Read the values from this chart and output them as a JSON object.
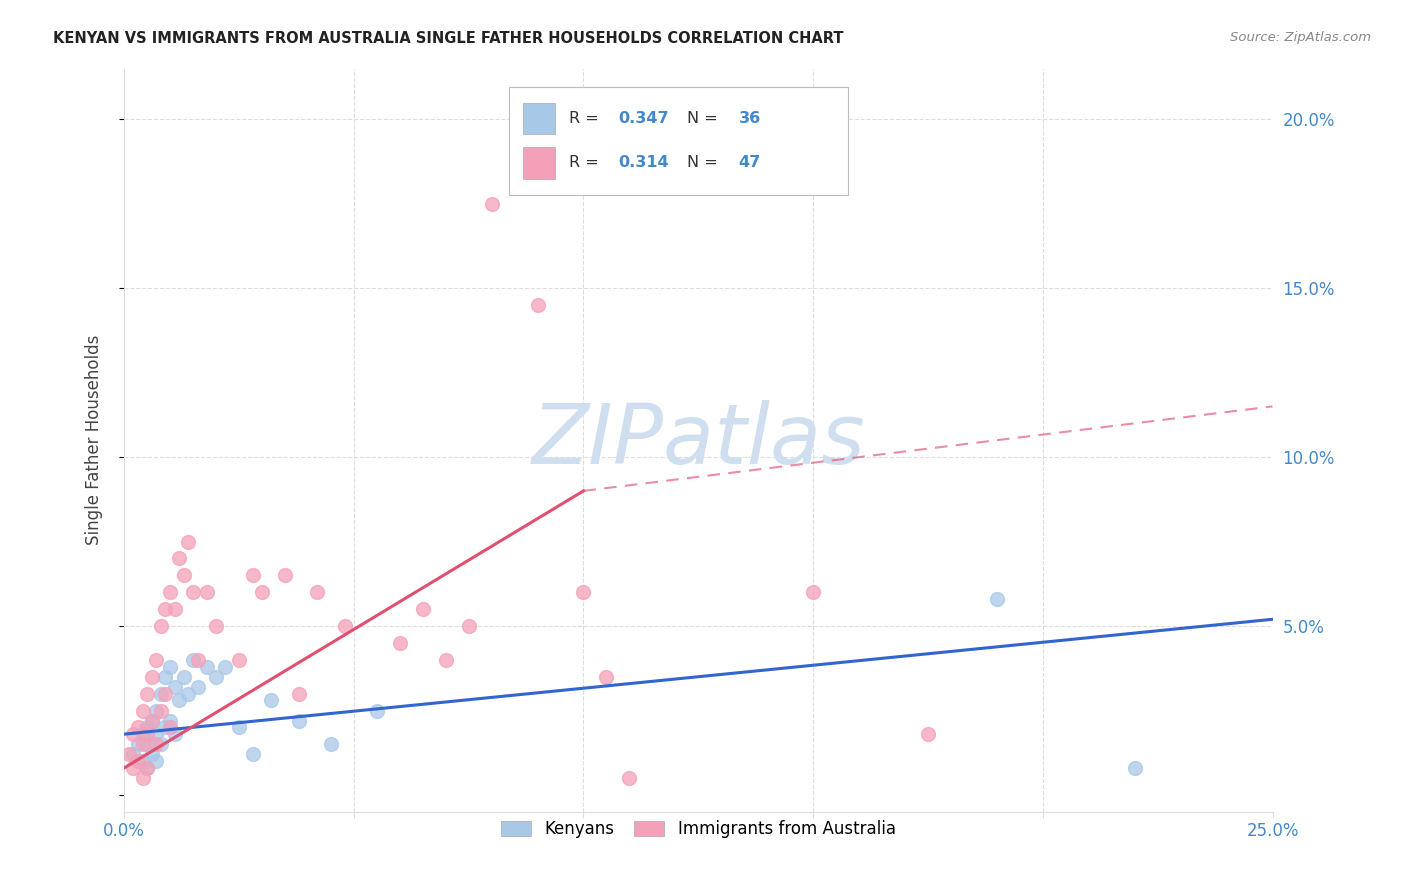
{
  "title": "KENYAN VS IMMIGRANTS FROM AUSTRALIA SINGLE FATHER HOUSEHOLDS CORRELATION CHART",
  "source": "Source: ZipAtlas.com",
  "ylabel": "Single Father Households",
  "xlim": [
    0.0,
    0.25
  ],
  "ylim": [
    -0.005,
    0.215
  ],
  "xtick_positions": [
    0.0,
    0.05,
    0.1,
    0.15,
    0.2,
    0.25
  ],
  "xtick_labels": [
    "0.0%",
    "",
    "",
    "",
    "",
    "25.0%"
  ],
  "ytick_positions": [
    0.0,
    0.05,
    0.1,
    0.15,
    0.2
  ],
  "ytick_labels": [
    "",
    "5.0%",
    "10.0%",
    "15.0%",
    "20.0%"
  ],
  "legend_r_blue": "0.347",
  "legend_n_blue": "36",
  "legend_r_pink": "0.314",
  "legend_n_pink": "47",
  "blue_scatter_color": "#a8c8e8",
  "pink_scatter_color": "#f4a0b8",
  "blue_line_color": "#3366cc",
  "pink_line_color": "#e05070",
  "watermark_color": "#d0dff0",
  "grid_color": "#dddddd",
  "title_color": "#222222",
  "axis_label_color": "#444444",
  "tick_label_color": "#4488cc",
  "source_color": "#888888",
  "blue_scatter_x": [
    0.002,
    0.003,
    0.004,
    0.004,
    0.005,
    0.005,
    0.005,
    0.006,
    0.006,
    0.007,
    0.007,
    0.007,
    0.008,
    0.008,
    0.009,
    0.009,
    0.01,
    0.01,
    0.011,
    0.011,
    0.012,
    0.013,
    0.014,
    0.015,
    0.016,
    0.018,
    0.02,
    0.022,
    0.025,
    0.028,
    0.032,
    0.038,
    0.045,
    0.055,
    0.19,
    0.22
  ],
  "blue_scatter_y": [
    0.012,
    0.015,
    0.018,
    0.01,
    0.02,
    0.015,
    0.008,
    0.022,
    0.012,
    0.025,
    0.018,
    0.01,
    0.03,
    0.015,
    0.035,
    0.02,
    0.038,
    0.022,
    0.032,
    0.018,
    0.028,
    0.035,
    0.03,
    0.04,
    0.032,
    0.038,
    0.035,
    0.038,
    0.02,
    0.012,
    0.028,
    0.022,
    0.015,
    0.025,
    0.058,
    0.008
  ],
  "pink_scatter_x": [
    0.001,
    0.002,
    0.002,
    0.003,
    0.003,
    0.004,
    0.004,
    0.004,
    0.005,
    0.005,
    0.005,
    0.006,
    0.006,
    0.007,
    0.007,
    0.008,
    0.008,
    0.009,
    0.009,
    0.01,
    0.01,
    0.011,
    0.012,
    0.013,
    0.014,
    0.015,
    0.016,
    0.018,
    0.02,
    0.025,
    0.028,
    0.03,
    0.035,
    0.038,
    0.042,
    0.048,
    0.06,
    0.065,
    0.07,
    0.075,
    0.08,
    0.09,
    0.1,
    0.105,
    0.11,
    0.15,
    0.175
  ],
  "pink_scatter_y": [
    0.012,
    0.018,
    0.008,
    0.02,
    0.01,
    0.025,
    0.015,
    0.005,
    0.03,
    0.018,
    0.008,
    0.035,
    0.022,
    0.04,
    0.015,
    0.05,
    0.025,
    0.055,
    0.03,
    0.06,
    0.02,
    0.055,
    0.07,
    0.065,
    0.075,
    0.06,
    0.04,
    0.06,
    0.05,
    0.04,
    0.065,
    0.06,
    0.065,
    0.03,
    0.06,
    0.05,
    0.045,
    0.055,
    0.04,
    0.05,
    0.175,
    0.145,
    0.06,
    0.035,
    0.005,
    0.06,
    0.018
  ],
  "blue_trend": [
    0.0,
    0.25,
    0.018,
    0.052
  ],
  "pink_trend_solid": [
    0.0,
    0.1,
    0.008,
    0.09
  ],
  "pink_trend_dash": [
    0.1,
    0.25,
    0.09,
    0.115
  ]
}
